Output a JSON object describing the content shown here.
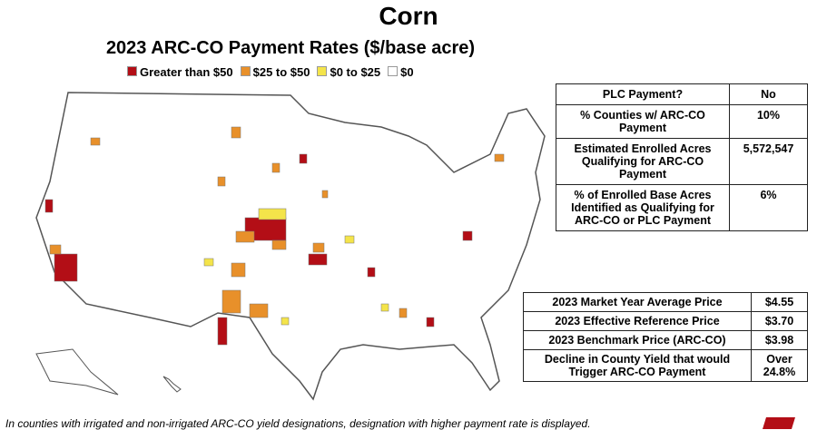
{
  "title": "Corn",
  "subtitle": "2023 ARC-CO Payment Rates ($/base acre)",
  "legend": [
    {
      "label": "Greater than $50",
      "color": "#b30e16"
    },
    {
      "label": "$25 to $50",
      "color": "#e8902a"
    },
    {
      "label": "$0 to $25",
      "color": "#f4e44a"
    },
    {
      "label": "$0",
      "color": "#ffffff"
    }
  ],
  "table1": {
    "rows": [
      [
        "PLC Payment?",
        "No"
      ],
      [
        "% Counties w/ ARC-CO Payment",
        "10%"
      ],
      [
        "Estimated Enrolled Acres Qualifying for ARC-CO Payment",
        "5,572,547"
      ],
      [
        "% of Enrolled Base Acres Identified as Qualifying for ARC-CO or PLC Payment",
        "6%"
      ]
    ]
  },
  "table2": {
    "rows": [
      [
        "2023 Market Year Average Price",
        "$4.55"
      ],
      [
        "2023 Effective Reference Price",
        "$3.70"
      ],
      [
        "2023 Benchmark Price (ARC-CO)",
        "$3.98"
      ],
      [
        "Decline in County Yield that would Trigger ARC-CO Payment",
        "Over 24.8%"
      ]
    ]
  },
  "footnote": "In counties with irrigated and non-irrigated ARC-CO yield designations, designation with higher payment rate is displayed."
}
